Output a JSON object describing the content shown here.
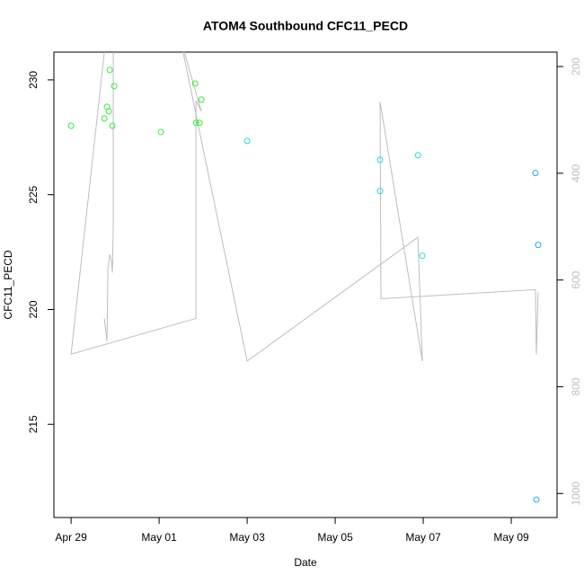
{
  "chart_data": {
    "type": "scatter",
    "title": "ATOM4 Southbound CFC11_PECD",
    "x_label": "Date",
    "y_label": "CFC11_PECD",
    "xlim": [
      -0.39,
      11.04
    ],
    "xticks": [
      {
        "value": 0,
        "label": "Apr 29"
      },
      {
        "value": 2,
        "label": "May 01"
      },
      {
        "value": 4,
        "label": "May 03"
      },
      {
        "value": 6,
        "label": "May 05"
      },
      {
        "value": 8,
        "label": "May 07"
      },
      {
        "value": 10,
        "label": "May 09"
      }
    ],
    "ylim": [
      210.94,
      231.21
    ],
    "yticks": [
      215,
      220,
      225,
      230
    ],
    "y2lim": [
      1045,
      173
    ],
    "y2ticks": [
      200,
      400,
      600,
      800,
      1000
    ],
    "y2_color": "#bebebe",
    "series": [
      {
        "type": "scatter",
        "x": [
          0,
          0.755,
          0.816,
          0.857,
          0.878,
          0.939,
          0.98,
          2.04,
          2.82,
          2.84,
          2.92,
          2.96,
          4.0,
          7.02,
          7.02,
          7.88,
          7.98,
          10.55,
          10.61,
          10.57
        ],
        "values": [
          228.0,
          228.32,
          228.83,
          228.63,
          230.43,
          228.0,
          229.73,
          227.73,
          229.84,
          228.13,
          228.13,
          229.14,
          227.34,
          226.52,
          225.16,
          226.72,
          222.34,
          225.94,
          222.81,
          211.72
        ],
        "colors": [
          "#33ee33",
          "#33ee33",
          "#33ee33",
          "#33ee33",
          "#33ee33",
          "#33ee33",
          "#33ee33",
          "#33ee33",
          "#33ee33",
          "#33ee33",
          "#33ee33",
          "#33ee33",
          "#22ddc8",
          "#22dddd",
          "#22dddd",
          "#22dddd",
          "#22dddd",
          "#22aaee",
          "#22aaee",
          "#22aaee"
        ]
      },
      {
        "type": "line",
        "axis": "y2",
        "color": "#bebebe",
        "x": [
          0.755,
          0.816,
          0.837,
          0.878,
          0.918,
          0.939,
          0.959,
          0.959,
          0.796,
          0,
          2.837,
          2.837,
          2.959,
          2.878,
          2.469,
          4.0,
          7.878,
          7.98,
          7.02,
          7.04,
          10.55,
          10.57,
          10.61
        ],
        "values": [
          672,
          715,
          581,
          552,
          564,
          586,
          496,
          143,
          143,
          739,
          672,
          264,
          284,
          261,
          143,
          752,
          520,
          752,
          266,
          635,
          618,
          739,
          623
        ]
      }
    ]
  }
}
